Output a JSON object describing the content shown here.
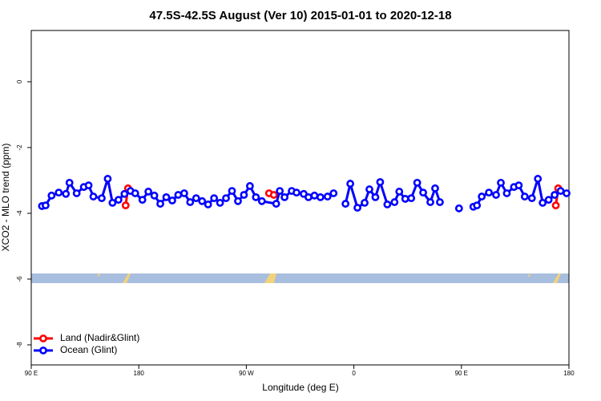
{
  "chart_data": {
    "type": "line",
    "title": "47.5S-42.5S August (Ver 10)   2015-01-01 to 2020-12-18",
    "x_label": "Longitude (deg E)",
    "y_label": "XCO2 - MLO trend (ppm)",
    "xlim": [
      90,
      540
    ],
    "ylim": [
      1.56,
      -8.61
    ],
    "xticks": [
      {
        "value": 90,
        "label": "90 E"
      },
      180,
      {
        "value": 270,
        "label": "90 W"
      },
      {
        "value": 360,
        "label": "0"
      },
      {
        "value": 450,
        "label": "90 E"
      },
      {
        "value": 540,
        "label": "180"
      }
    ],
    "yticks": [
      0,
      -2,
      -4,
      -6,
      -8
    ],
    "legend": "bottom-left",
    "series": [
      {
        "name": "Land (Nadir&Glint)",
        "color": "#ff0000",
        "x": [
          169,
          171,
          250,
          289,
          293,
          400,
          529,
          531
        ],
        "values": [
          -3.76,
          -3.24,
          null,
          -3.39,
          -3.44,
          null,
          -3.76,
          -3.24
        ]
      },
      {
        "name": "Ocean (Glint)",
        "color": "#0000ff",
        "x": [
          99,
          102,
          107,
          113,
          119,
          122,
          128,
          134,
          138,
          142,
          149,
          154,
          158,
          163,
          168,
          173,
          177,
          183,
          188,
          193,
          198,
          203,
          208,
          213,
          218,
          223,
          228,
          233,
          238,
          243,
          248,
          253,
          258,
          263,
          268,
          273,
          278,
          283,
          295,
          298,
          302,
          308,
          312,
          318,
          322,
          327,
          332,
          338,
          343,
          348,
          353,
          357,
          363,
          369,
          373,
          378,
          382,
          388,
          394,
          398,
          403,
          408,
          413,
          418,
          424,
          428,
          432,
          440,
          448,
          454,
          460,
          463,
          467,
          473,
          479,
          483,
          488,
          494,
          498,
          503,
          509,
          514,
          518,
          523,
          528,
          533,
          538
        ],
        "values": [
          -3.78,
          -3.76,
          -3.46,
          -3.37,
          -3.41,
          -3.07,
          -3.39,
          -3.2,
          -3.15,
          -3.49,
          -3.54,
          -2.95,
          -3.68,
          -3.59,
          -3.41,
          -3.32,
          -3.39,
          -3.59,
          -3.34,
          -3.46,
          -3.71,
          -3.51,
          -3.61,
          -3.44,
          -3.39,
          -3.66,
          -3.54,
          -3.63,
          -3.73,
          -3.54,
          -3.68,
          -3.54,
          -3.32,
          -3.63,
          -3.44,
          -3.17,
          -3.51,
          -3.63,
          -3.71,
          -3.32,
          -3.51,
          -3.32,
          -3.37,
          -3.41,
          -3.51,
          -3.46,
          -3.51,
          -3.49,
          -3.39,
          null,
          -3.71,
          -3.1,
          -3.83,
          -3.68,
          -3.27,
          -3.51,
          -3.05,
          -3.73,
          -3.66,
          -3.34,
          -3.56,
          -3.54,
          -3.07,
          -3.37,
          -3.66,
          -3.24,
          -3.66,
          null,
          -3.85,
          null,
          -3.8,
          -3.76,
          -3.49,
          -3.37,
          -3.44,
          -3.07,
          -3.39,
          -3.2,
          -3.15,
          -3.49,
          -3.54,
          -2.95,
          -3.68,
          -3.59,
          -3.44,
          -3.32,
          -3.39
        ]
      }
    ]
  }
}
